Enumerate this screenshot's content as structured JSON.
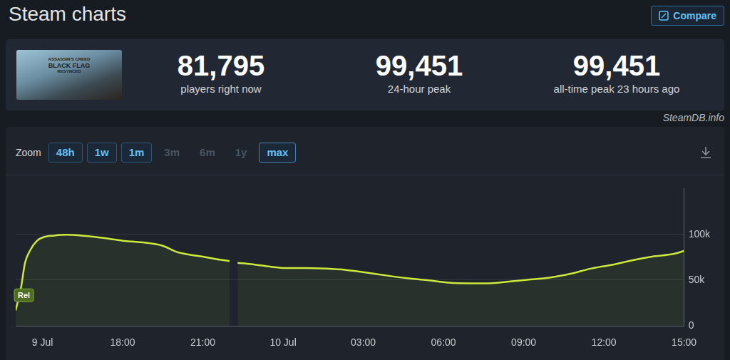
{
  "header": {
    "title": "Steam charts",
    "button": "Compare",
    "source": "SteamDB.info"
  },
  "thumbnail": {
    "lines": [
      "ASSASSIN'S CREED",
      "BLACK FLAG",
      "RESYNCED"
    ]
  },
  "stats": [
    {
      "value": "81,795",
      "label": "players right now"
    },
    {
      "value": "99,451",
      "label": "24-hour peak"
    },
    {
      "value": "99,451",
      "label": "all-time peak 23 hours ago"
    }
  ],
  "zoom": {
    "label": "Zoom",
    "options": [
      "48h",
      "1w",
      "1m",
      "3m",
      "6m",
      "1y",
      "max"
    ],
    "disabled": [
      "3m",
      "6m",
      "1y"
    ],
    "active": "max"
  },
  "chart_data": {
    "type": "line",
    "color": "#cdea3c",
    "grid": true,
    "x": [
      14.0,
      14.2,
      14.35,
      14.55,
      14.8,
      15.05,
      15.45,
      15.9,
      16.45,
      16.95,
      17.5,
      18.0,
      18.5,
      19.0,
      19.5,
      20.0,
      20.5,
      21.0,
      21.5,
      22.0,
      22.15,
      22.3,
      22.8,
      23.55,
      24.1,
      24.85,
      25.6,
      26.35,
      27.1,
      27.9,
      28.65,
      29.4,
      30.2,
      30.95,
      31.7,
      32.5,
      33.25,
      34.0,
      34.75,
      35.5,
      36.3,
      37.05,
      37.8,
      38.6,
      39.0
    ],
    "values": [
      17000,
      42000,
      69000,
      83000,
      93000,
      97000,
      98600,
      99451,
      98600,
      97200,
      95100,
      93000,
      91700,
      90300,
      87500,
      81000,
      77800,
      75700,
      72900,
      70800,
      null,
      68800,
      67400,
      64600,
      63200,
      63200,
      62500,
      61100,
      58300,
      54900,
      52100,
      50000,
      47200,
      46500,
      46500,
      48600,
      50700,
      52800,
      56900,
      62500,
      66700,
      71500,
      75700,
      78500,
      81795
    ],
    "xlim": [
      14,
      39
    ],
    "xticks": [
      {
        "value": 15,
        "label": "9 Jul"
      },
      {
        "value": 18,
        "label": "18:00"
      },
      {
        "value": 21,
        "label": "21:00"
      },
      {
        "value": 24,
        "label": "10 Jul"
      },
      {
        "value": 27,
        "label": "03:00"
      },
      {
        "value": 30,
        "label": "06:00"
      },
      {
        "value": 33,
        "label": "09:00"
      },
      {
        "value": 36,
        "label": "12:00"
      },
      {
        "value": 39,
        "label": "15:00"
      }
    ],
    "ylim": [
      0,
      150000
    ],
    "yticks": [
      0,
      {
        "value": 50000,
        "label": "50k"
      },
      {
        "value": 100000,
        "label": "100k"
      }
    ],
    "annotations": [
      {
        "x": 14,
        "label": "Rel"
      }
    ]
  }
}
